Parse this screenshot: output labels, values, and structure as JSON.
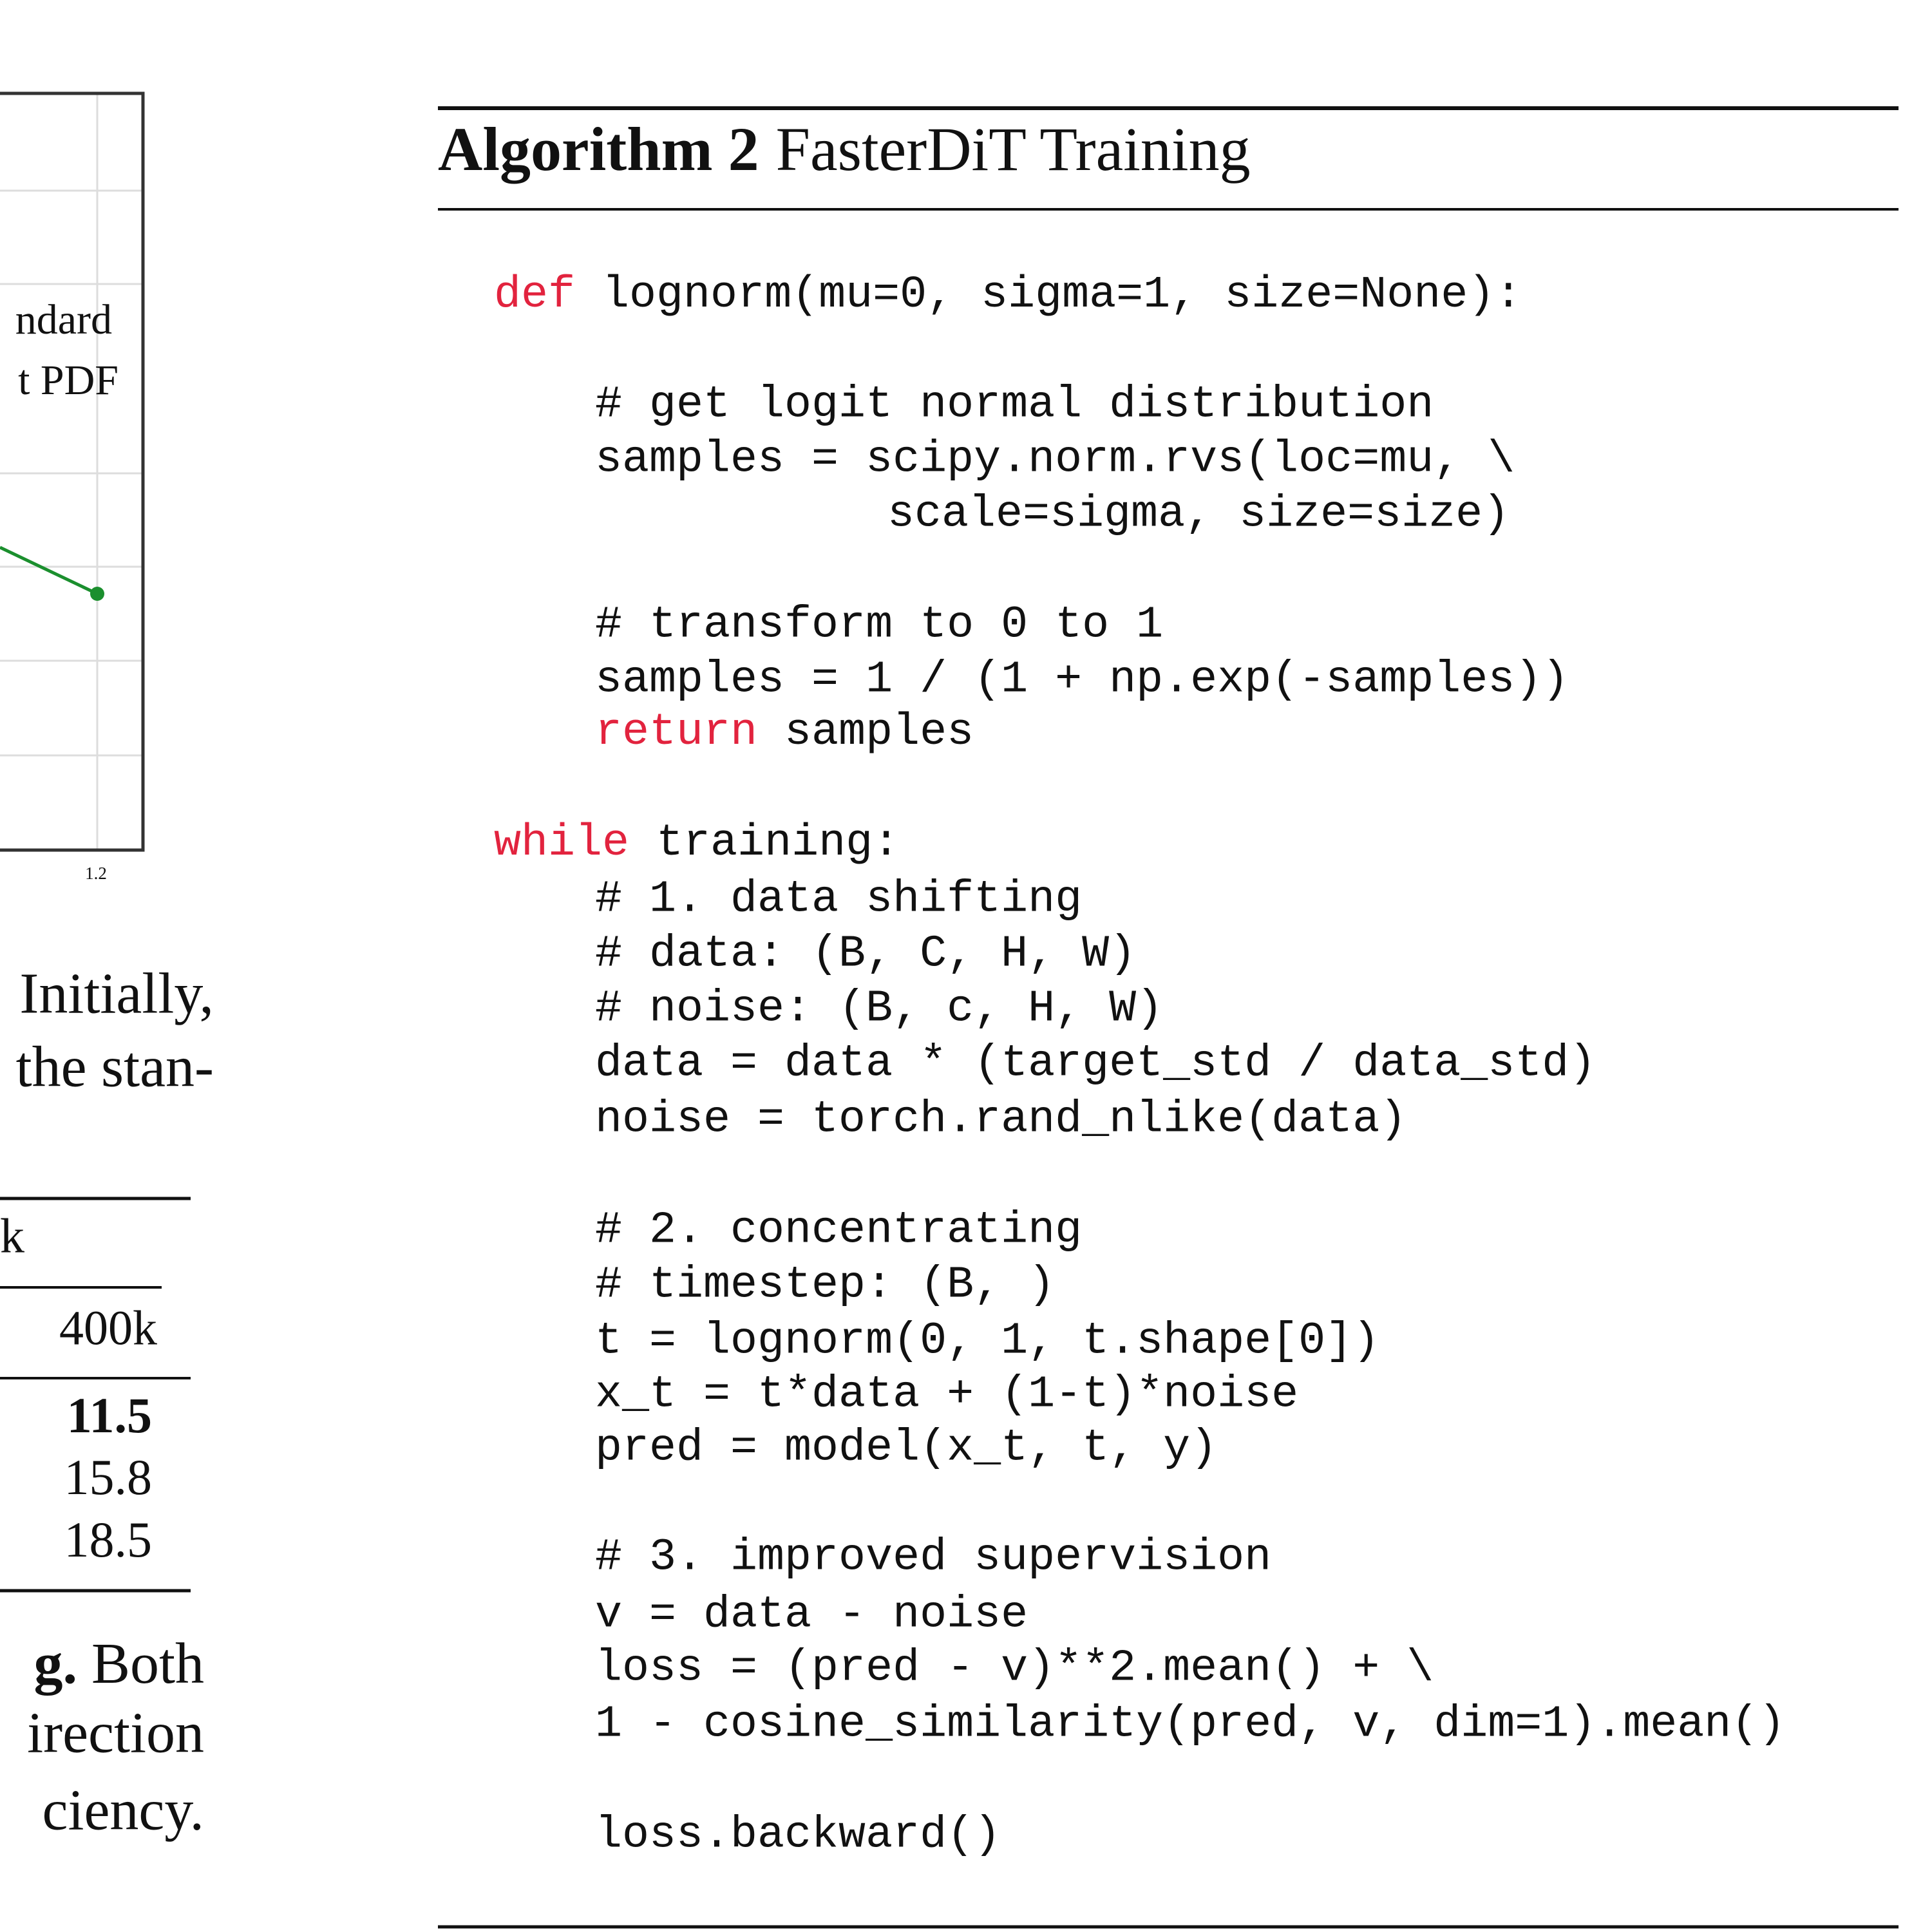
{
  "figure": {
    "legend": [
      "ndard",
      "t PDF"
    ],
    "x_tick": "1.2"
  },
  "body_text": [
    "Initially,",
    "the stan-"
  ],
  "table": {
    "header": [
      "k",
      "400k"
    ],
    "rows": [
      "11.5",
      "15.8",
      "18.5"
    ]
  },
  "caption": {
    "lines": [
      {
        "bold": "g.",
        "text": "Both"
      },
      "irection",
      "ciency."
    ]
  },
  "algorithm": {
    "label": "Algorithm 2",
    "title": "FasterDiT Training",
    "lines": [
      {
        "keyword": "def",
        "code": "lognorm(mu=0, sigma=1, size=None):"
      },
      {
        "comment": "# get logit normal distribution"
      },
      "samples = scipy.norm.rvs(loc=mu, \\",
      "scale=sigma, size=size)",
      {
        "comment": "# transform to 0 to 1"
      },
      "samples = 1 / (1 + np.exp(-samples))",
      {
        "keyword": "return",
        "code": "samples"
      },
      {
        "keyword": "while",
        "code": "training:"
      },
      {
        "comment": "# 1. data shifting"
      },
      {
        "comment": "# data: (B, C, H, W)"
      },
      {
        "comment": "# noise: (B, c, H, W)"
      },
      "data = data * (target_std / data_std)",
      "noise = torch.rand_nlike(data)",
      {
        "comment": "# 2. concentrating"
      },
      {
        "comment": "# timestep: (B, )"
      },
      "t = lognorm(0, 1, t.shape[0])",
      "x_t = t*data + (1-t)*noise",
      "pred = model(x_t, t, y)",
      {
        "comment": "# 3. improved supervision"
      },
      "v = data - noise",
      "loss = (pred - v)**2.mean() + \\",
      "1 - cosine_similarity(pred, v, dim=1).mean()",
      "loss.backward()"
    ]
  }
}
